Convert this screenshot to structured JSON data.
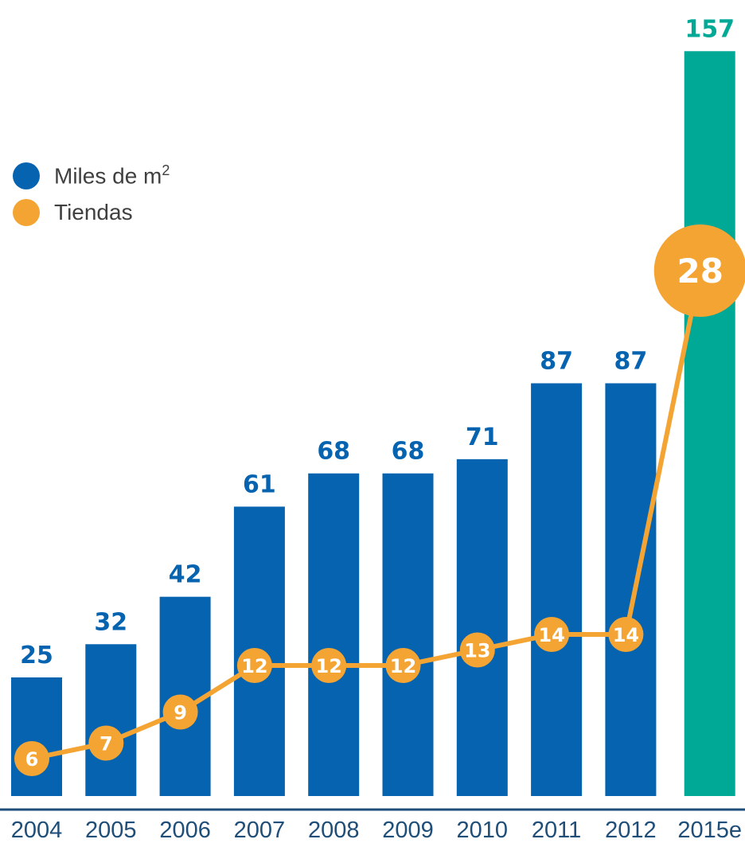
{
  "chart_data": {
    "type": "bar",
    "categories": [
      "2004",
      "2005",
      "2006",
      "2007",
      "2008",
      "2009",
      "2010",
      "2011",
      "2012",
      "2015e"
    ],
    "series": [
      {
        "name": "Miles de m",
        "name_superscript": "2",
        "type": "bar",
        "values": [
          25,
          32,
          42,
          61,
          68,
          68,
          71,
          87,
          87,
          157
        ]
      },
      {
        "name": "Tiendas",
        "type": "line",
        "values": [
          6,
          7,
          9,
          12,
          12,
          12,
          13,
          14,
          14,
          28
        ]
      }
    ],
    "legend_position": "left",
    "grid": false
  },
  "colors": {
    "bar": "#0563B0",
    "bar_highlight": "#00A896",
    "line": "#F4A433",
    "marker_text": "#ffffff",
    "axis": "#1F4E79",
    "value_label": "#0563B0",
    "value_label_highlight": "#00A896"
  }
}
